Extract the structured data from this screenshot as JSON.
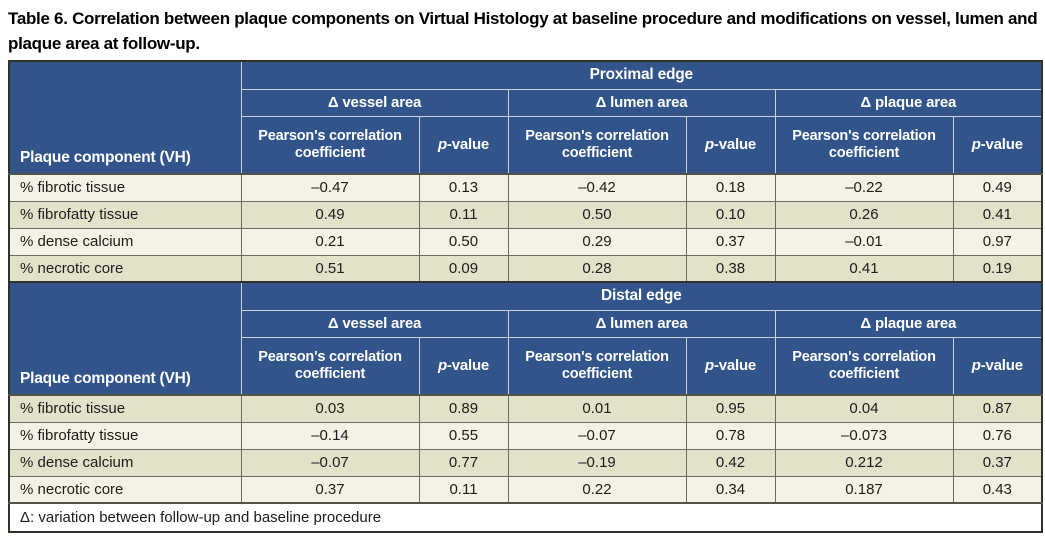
{
  "title": "Table 6. Correlation between plaque components on Virtual Histology at baseline procedure and modifications on vessel, lumen and plaque area at follow-up.",
  "colors": {
    "header_blue": "#31548b",
    "row_light": "#f4f2e4",
    "row_dark": "#e4e1ca",
    "header_text": "#ffffff",
    "body_text": "#1c1c1a",
    "outer_border": "#32322b"
  },
  "table": {
    "row_header": "Plaque component (VH)",
    "col_groups": [
      "Δ vessel area",
      "Δ lumen area",
      "Δ plaque area"
    ],
    "pearson_label": "Pearson's correlation coefficient",
    "pvalue_italic": "p",
    "pvalue_rest": "-value",
    "sections": [
      {
        "label": "Proximal edge",
        "rows": [
          {
            "component": "% fibrotic tissue",
            "values": [
              "–0.47",
              "0.13",
              "–0.42",
              "0.18",
              "–0.22",
              "0.49"
            ]
          },
          {
            "component": "% fibrofatty tissue",
            "values": [
              "0.49",
              "0.11",
              "0.50",
              "0.10",
              "0.26",
              "0.41"
            ]
          },
          {
            "component": "% dense calcium",
            "values": [
              "0.21",
              "0.50",
              "0.29",
              "0.37",
              "–0.01",
              "0.97"
            ]
          },
          {
            "component": "% necrotic core",
            "values": [
              "0.51",
              "0.09",
              "0.28",
              "0.38",
              "0.41",
              "0.19"
            ]
          }
        ]
      },
      {
        "label": "Distal edge",
        "rows": [
          {
            "component": "% fibrotic tissue",
            "values": [
              "0.03",
              "0.89",
              "0.01",
              "0.95",
              "0.04",
              "0.87"
            ]
          },
          {
            "component": "% fibrofatty tissue",
            "values": [
              "–0.14",
              "0.55",
              "–0.07",
              "0.78",
              "–0.073",
              "0.76"
            ]
          },
          {
            "component": "% dense calcium",
            "values": [
              "–0.07",
              "0.77",
              "–0.19",
              "0.42",
              "0.212",
              "0.37"
            ]
          },
          {
            "component": "% necrotic core",
            "values": [
              "0.37",
              "0.11",
              "0.22",
              "0.34",
              "0.187",
              "0.43"
            ]
          }
        ]
      }
    ],
    "footnote": "Δ: variation between follow-up and baseline procedure"
  }
}
